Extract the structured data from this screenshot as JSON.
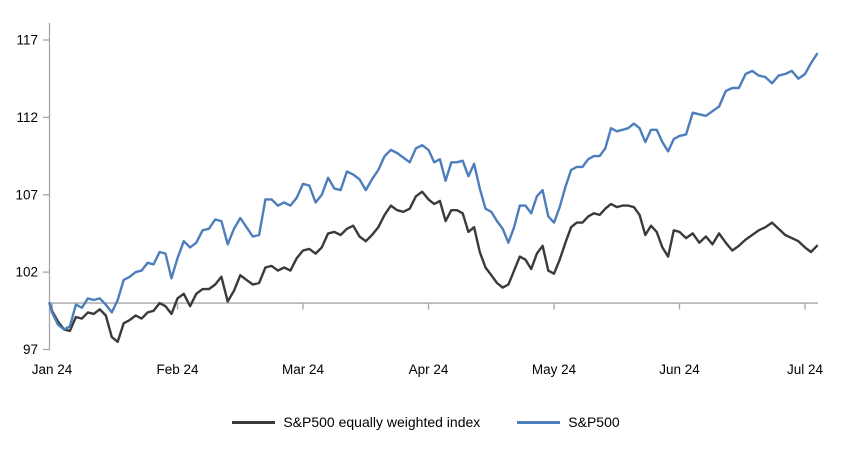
{
  "chart_data": {
    "type": "line",
    "title": "",
    "legend_position": "bottom",
    "grid": "off",
    "axis_color": "#a6a6a6",
    "text_color": "#000000",
    "background": "#ffffff",
    "y_ticks": [
      97,
      102,
      107,
      112,
      117
    ],
    "ylim": [
      97,
      118.2
    ],
    "baseline_value": 100,
    "x_tick_labels": [
      "Jan 24",
      "Feb 24",
      "Mar 24",
      "Apr 24",
      "May 24",
      "Jun 24",
      "Jul 24"
    ],
    "trading_days_per_month": [
      21,
      20,
      20,
      22,
      22,
      19,
      3
    ],
    "start_t": -0.02,
    "series": [
      {
        "name": "S&P500 equally weighted index",
        "color": "#3a3a3a",
        "values": [
          100.0,
          99.5,
          98.8,
          98.3,
          98.2,
          99.1,
          99.0,
          99.4,
          99.3,
          99.6,
          99.2,
          97.8,
          97.5,
          98.7,
          98.9,
          99.2,
          99.0,
          99.4,
          99.5,
          100.0,
          99.8,
          99.3,
          100.3,
          100.6,
          99.8,
          100.6,
          100.9,
          100.9,
          101.2,
          101.7,
          100.1,
          100.8,
          101.8,
          101.5,
          101.2,
          101.3,
          102.3,
          102.4,
          102.1,
          102.3,
          102.1,
          102.9,
          103.4,
          103.5,
          103.2,
          103.6,
          104.5,
          104.6,
          104.4,
          104.8,
          105.0,
          104.3,
          104.0,
          104.4,
          104.9,
          105.7,
          106.3,
          106.0,
          105.9,
          106.1,
          106.9,
          107.2,
          106.7,
          106.4,
          106.6,
          105.3,
          106.0,
          106.0,
          105.8,
          104.6,
          104.9,
          103.3,
          102.3,
          101.8,
          101.3,
          101.0,
          101.2,
          102.1,
          103.0,
          102.8,
          102.2,
          103.2,
          103.7,
          102.1,
          101.9,
          102.8,
          103.9,
          104.9,
          105.2,
          105.2,
          105.6,
          105.8,
          105.7,
          106.1,
          106.4,
          106.2,
          106.3,
          106.3,
          106.2,
          105.7,
          104.4,
          105.0,
          104.6,
          103.6,
          103.0,
          104.7,
          104.6,
          104.2,
          104.5,
          103.9,
          104.3,
          103.8,
          104.5,
          103.9,
          103.4,
          103.7,
          104.1,
          104.4,
          104.7,
          104.9,
          105.2,
          104.8,
          104.4,
          104.2,
          104.0,
          103.6,
          103.3,
          103.7
        ]
      },
      {
        "name": "S&P500",
        "color": "#4d7ebc",
        "values": [
          100.0,
          99.4,
          98.6,
          98.3,
          98.5,
          99.9,
          99.7,
          100.3,
          100.2,
          100.3,
          99.9,
          99.4,
          100.2,
          101.5,
          101.7,
          102.0,
          102.1,
          102.6,
          102.5,
          103.3,
          103.2,
          101.6,
          102.9,
          104.0,
          103.6,
          103.9,
          104.7,
          104.8,
          105.4,
          105.3,
          103.8,
          104.8,
          105.5,
          104.9,
          104.3,
          104.4,
          106.7,
          106.7,
          106.3,
          106.5,
          106.3,
          106.8,
          107.7,
          107.6,
          106.5,
          107.0,
          108.1,
          107.4,
          107.3,
          108.5,
          108.3,
          108.0,
          107.3,
          108.0,
          108.6,
          109.5,
          109.9,
          109.7,
          109.4,
          109.1,
          110.0,
          110.2,
          109.9,
          109.1,
          109.3,
          107.9,
          109.1,
          109.1,
          109.2,
          108.2,
          109.0,
          107.4,
          106.1,
          105.9,
          105.3,
          104.8,
          103.9,
          104.9,
          106.3,
          106.3,
          105.8,
          106.9,
          107.3,
          105.6,
          105.2,
          106.2,
          107.5,
          108.6,
          108.8,
          108.8,
          109.3,
          109.5,
          109.5,
          110.0,
          111.3,
          111.1,
          111.2,
          111.3,
          111.6,
          111.3,
          110.4,
          111.2,
          111.2,
          110.4,
          109.8,
          110.6,
          110.8,
          110.9,
          112.3,
          112.2,
          112.1,
          112.4,
          112.7,
          113.7,
          113.9,
          113.9,
          114.8,
          115.0,
          114.7,
          114.6,
          114.2,
          114.7,
          114.8,
          115.0,
          114.5,
          114.8,
          115.5,
          116.1
        ]
      }
    ]
  }
}
